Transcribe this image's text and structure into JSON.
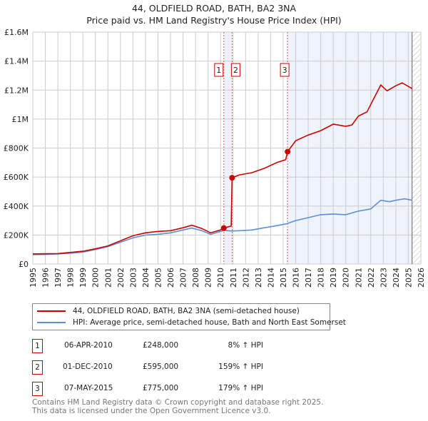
{
  "chart_data": {
    "type": "line",
    "title": "44, OLDFIELD ROAD, BATH, BA2 3NA",
    "subtitle": "Price paid vs. HM Land Registry's House Price Index (HPI)",
    "xlim": [
      1995,
      2026
    ],
    "ylim": [
      0,
      1600000
    ],
    "x_ticks": [
      "1995",
      "1996",
      "1997",
      "1998",
      "1999",
      "2000",
      "2001",
      "2002",
      "2003",
      "2004",
      "2005",
      "2006",
      "2007",
      "2008",
      "2009",
      "2010",
      "2011",
      "2012",
      "2013",
      "2014",
      "2015",
      "2016",
      "2017",
      "2018",
      "2019",
      "2020",
      "2021",
      "2022",
      "2023",
      "2024",
      "2025",
      "2026"
    ],
    "y_ticks": [
      {
        "v": 0,
        "l": "£0"
      },
      {
        "v": 200000,
        "l": "£200K"
      },
      {
        "v": 400000,
        "l": "£400K"
      },
      {
        "v": 600000,
        "l": "£600K"
      },
      {
        "v": 800000,
        "l": "£800K"
      },
      {
        "v": 1000000,
        "l": "£1M"
      },
      {
        "v": 1200000,
        "l": "£1.2M"
      },
      {
        "v": 1400000,
        "l": "£1.4M"
      },
      {
        "v": 1600000,
        "l": "£1.6M"
      }
    ],
    "grid": true,
    "series": [
      {
        "name": "44, OLDFIELD ROAD, BATH, BA2 3NA (semi-detached house)",
        "color": "#cc0000",
        "points": [
          [
            1995,
            70000
          ],
          [
            1997,
            72000
          ],
          [
            1999,
            88000
          ],
          [
            2000,
            105000
          ],
          [
            2001,
            125000
          ],
          [
            2002,
            160000
          ],
          [
            2003,
            195000
          ],
          [
            2004,
            215000
          ],
          [
            2005,
            225000
          ],
          [
            2006,
            230000
          ],
          [
            2007,
            250000
          ],
          [
            2007.7,
            268000
          ],
          [
            2008.5,
            245000
          ],
          [
            2009.2,
            215000
          ],
          [
            2010,
            235000
          ],
          [
            2010.26,
            248000
          ],
          [
            2010.85,
            262000
          ],
          [
            2010.92,
            595000
          ],
          [
            2011.5,
            615000
          ],
          [
            2012.5,
            630000
          ],
          [
            2013.5,
            660000
          ],
          [
            2014.5,
            700000
          ],
          [
            2015.2,
            720000
          ],
          [
            2015.35,
            775000
          ],
          [
            2016,
            850000
          ],
          [
            2017,
            890000
          ],
          [
            2018,
            920000
          ],
          [
            2019,
            965000
          ],
          [
            2020,
            950000
          ],
          [
            2020.5,
            960000
          ],
          [
            2021,
            1020000
          ],
          [
            2021.7,
            1050000
          ],
          [
            2022.8,
            1235000
          ],
          [
            2023.3,
            1195000
          ],
          [
            2024,
            1230000
          ],
          [
            2024.5,
            1250000
          ],
          [
            2025.3,
            1210000
          ]
        ]
      },
      {
        "name": "HPI: Average price, semi-detached house, Bath and North East Somerset",
        "color": "#5b8fd6",
        "points": [
          [
            1995,
            65000
          ],
          [
            1996,
            66000
          ],
          [
            1997,
            70000
          ],
          [
            1998,
            75000
          ],
          [
            1999,
            82000
          ],
          [
            2000,
            100000
          ],
          [
            2001,
            120000
          ],
          [
            2002,
            150000
          ],
          [
            2003,
            180000
          ],
          [
            2004,
            200000
          ],
          [
            2005,
            205000
          ],
          [
            2006,
            215000
          ],
          [
            2007,
            235000
          ],
          [
            2007.7,
            248000
          ],
          [
            2008.5,
            230000
          ],
          [
            2009.2,
            205000
          ],
          [
            2010,
            225000
          ],
          [
            2010.3,
            232000
          ],
          [
            2010.9,
            228000
          ],
          [
            2011.5,
            230000
          ],
          [
            2012.5,
            235000
          ],
          [
            2013.5,
            250000
          ],
          [
            2014.5,
            265000
          ],
          [
            2015.3,
            278000
          ],
          [
            2016,
            300000
          ],
          [
            2017,
            320000
          ],
          [
            2018,
            340000
          ],
          [
            2019,
            345000
          ],
          [
            2020,
            340000
          ],
          [
            2021,
            365000
          ],
          [
            2022,
            380000
          ],
          [
            2022.8,
            440000
          ],
          [
            2023.5,
            430000
          ],
          [
            2024,
            440000
          ],
          [
            2024.7,
            450000
          ],
          [
            2025.3,
            440000
          ]
        ]
      }
    ],
    "sales": [
      {
        "label": "1",
        "x": 2010.26,
        "value": 248000
      },
      {
        "label": "2",
        "x": 2010.92,
        "value": 595000
      },
      {
        "label": "3",
        "x": 2015.35,
        "value": 775000
      }
    ],
    "forecast_start": 2025.3,
    "shade_color": "#eef3fc"
  },
  "legend": {
    "property": "44, OLDFIELD ROAD, BATH, BA2 3NA (semi-detached house)",
    "hpi": "HPI: Average price, semi-detached house, Bath and North East Somerset"
  },
  "transactions": [
    {
      "num": "1",
      "date": "06-APR-2010",
      "price": "£248,000",
      "hpi": "8% ↑ HPI"
    },
    {
      "num": "2",
      "date": "01-DEC-2010",
      "price": "£595,000",
      "hpi": "159% ↑ HPI"
    },
    {
      "num": "3",
      "date": "07-MAY-2015",
      "price": "£775,000",
      "hpi": "179% ↑ HPI"
    }
  ],
  "footer": {
    "line1": "Contains HM Land Registry data © Crown copyright and database right 2025.",
    "line2": "This data is licensed under the Open Government Licence v3.0."
  }
}
